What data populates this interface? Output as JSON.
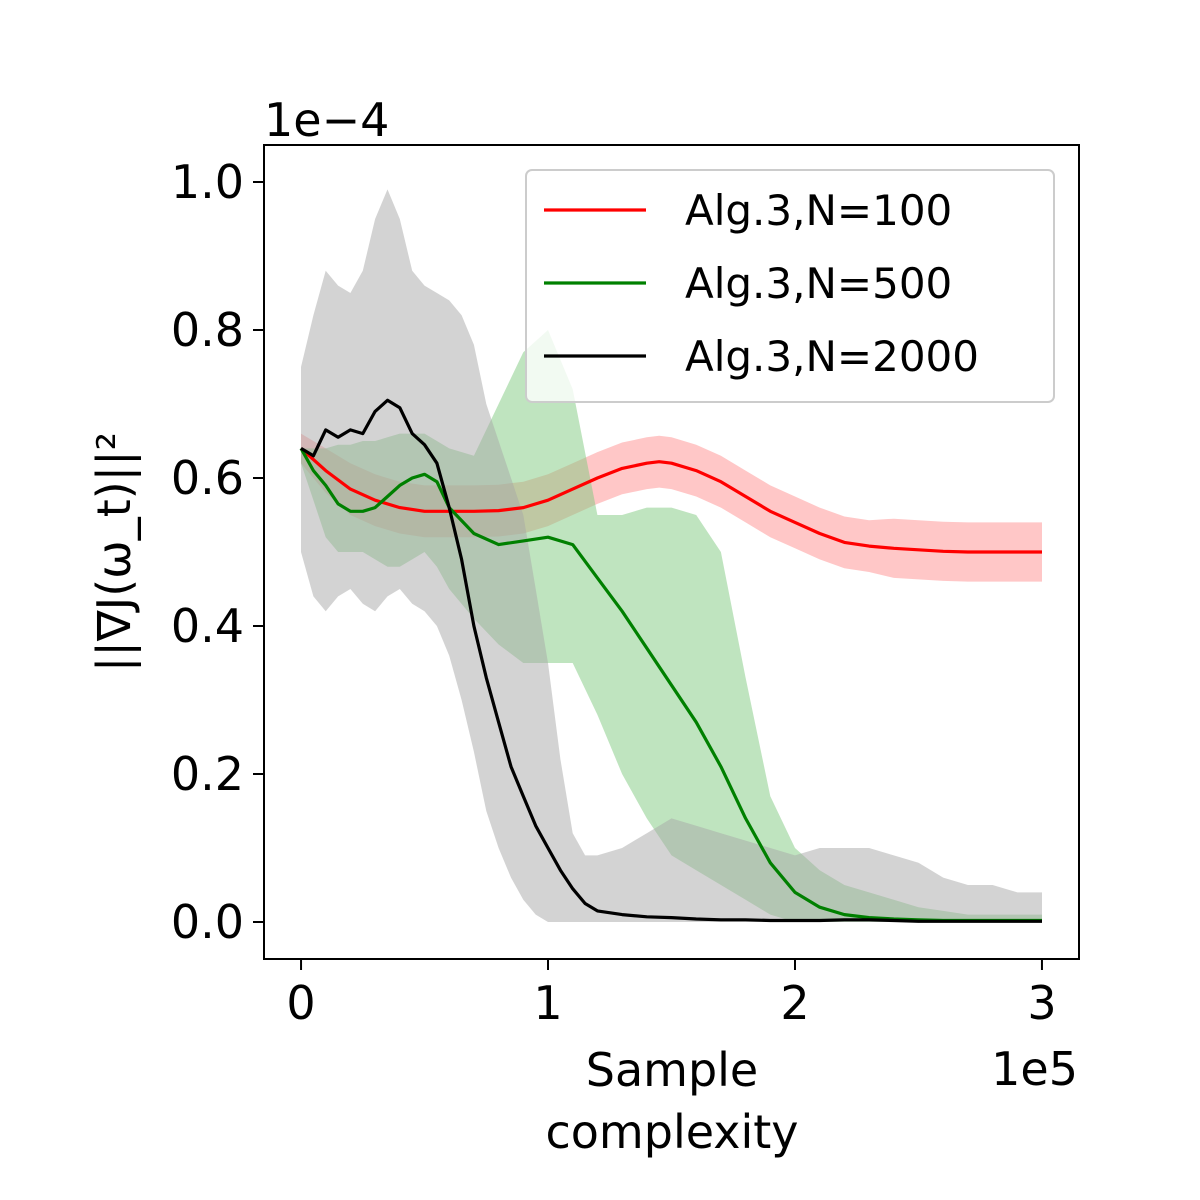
{
  "chart_data": {
    "type": "line",
    "xlabel": "Sample\ncomplexity",
    "xlabel_lines": [
      "Sample",
      "complexity"
    ],
    "ylabel": "||∇J(ω_t)||²",
    "x_scale_label": "1e5",
    "y_scale_label": "1e−4",
    "xlim": [
      -0.15,
      3.15
    ],
    "ylim": [
      -0.05,
      1.05
    ],
    "x_ticks": [
      0,
      1,
      2,
      3
    ],
    "x_tick_labels": [
      "0",
      "1",
      "2",
      "3"
    ],
    "y_ticks": [
      0.0,
      0.2,
      0.4,
      0.6,
      0.8,
      1.0
    ],
    "y_tick_labels": [
      "0.0",
      "0.2",
      "0.4",
      "0.6",
      "0.8",
      "1.0"
    ],
    "grid": false,
    "legend_position": "top-right",
    "series": [
      {
        "name": "Alg.3,N=100",
        "color": "#ff0000",
        "band_color": "#ff9090",
        "x": [
          0,
          0.1,
          0.2,
          0.3,
          0.4,
          0.5,
          0.6,
          0.7,
          0.8,
          0.9,
          1.0,
          1.1,
          1.2,
          1.3,
          1.4,
          1.45,
          1.5,
          1.6,
          1.7,
          1.8,
          1.9,
          2.0,
          2.1,
          2.2,
          2.3,
          2.4,
          2.5,
          2.6,
          2.7,
          2.8,
          2.9,
          3.0
        ],
        "values": [
          0.64,
          0.61,
          0.585,
          0.57,
          0.56,
          0.555,
          0.555,
          0.555,
          0.556,
          0.56,
          0.57,
          0.585,
          0.6,
          0.613,
          0.62,
          0.622,
          0.62,
          0.61,
          0.595,
          0.575,
          0.555,
          0.54,
          0.525,
          0.513,
          0.508,
          0.505,
          0.503,
          0.501,
          0.5,
          0.5,
          0.5,
          0.5
        ],
        "band": [
          0.02,
          0.03,
          0.035,
          0.035,
          0.035,
          0.035,
          0.035,
          0.035,
          0.035,
          0.035,
          0.035,
          0.035,
          0.035,
          0.035,
          0.035,
          0.035,
          0.035,
          0.035,
          0.035,
          0.035,
          0.035,
          0.035,
          0.035,
          0.035,
          0.035,
          0.04,
          0.04,
          0.04,
          0.04,
          0.04,
          0.04,
          0.04
        ]
      },
      {
        "name": "Alg.3,N=500",
        "color": "#008000",
        "band_color": "#7fc97f",
        "x": [
          0,
          0.05,
          0.1,
          0.15,
          0.2,
          0.25,
          0.3,
          0.35,
          0.4,
          0.45,
          0.5,
          0.55,
          0.6,
          0.7,
          0.8,
          0.9,
          1.0,
          1.1,
          1.2,
          1.3,
          1.4,
          1.5,
          1.6,
          1.7,
          1.8,
          1.9,
          2.0,
          2.1,
          2.2,
          2.3,
          2.4,
          2.5,
          2.6,
          2.7,
          2.8,
          2.9,
          3.0
        ],
        "values": [
          0.64,
          0.61,
          0.59,
          0.565,
          0.555,
          0.555,
          0.56,
          0.575,
          0.59,
          0.6,
          0.605,
          0.595,
          0.56,
          0.525,
          0.51,
          0.515,
          0.52,
          0.51,
          0.465,
          0.42,
          0.37,
          0.32,
          0.27,
          0.21,
          0.14,
          0.08,
          0.04,
          0.02,
          0.01,
          0.006,
          0.004,
          0.003,
          0.002,
          0.002,
          0.002,
          0.002,
          0.002
        ],
        "band_upper": [
          0.64,
          0.64,
          0.64,
          0.645,
          0.645,
          0.65,
          0.65,
          0.655,
          0.66,
          0.66,
          0.66,
          0.65,
          0.64,
          0.63,
          0.7,
          0.77,
          0.8,
          0.72,
          0.55,
          0.55,
          0.56,
          0.56,
          0.55,
          0.5,
          0.33,
          0.17,
          0.1,
          0.07,
          0.05,
          0.04,
          0.03,
          0.02,
          0.015,
          0.01,
          0.01,
          0.01,
          0.01
        ],
        "band_lower": [
          0.62,
          0.57,
          0.52,
          0.5,
          0.5,
          0.5,
          0.49,
          0.48,
          0.48,
          0.49,
          0.5,
          0.48,
          0.45,
          0.41,
          0.375,
          0.35,
          0.35,
          0.35,
          0.28,
          0.2,
          0.14,
          0.09,
          0.07,
          0.05,
          0.03,
          0.01,
          0.0,
          0.0,
          0.0,
          0.0,
          0.0,
          0.0,
          0.0,
          0.0,
          0.0,
          0.0,
          0.0
        ]
      },
      {
        "name": "Alg.3,N=2000",
        "color": "#000000",
        "band_color": "#a8a8a8",
        "x": [
          0,
          0.05,
          0.1,
          0.15,
          0.2,
          0.25,
          0.3,
          0.35,
          0.4,
          0.45,
          0.5,
          0.55,
          0.6,
          0.65,
          0.7,
          0.75,
          0.8,
          0.85,
          0.9,
          0.95,
          1.0,
          1.05,
          1.1,
          1.15,
          1.2,
          1.3,
          1.4,
          1.5,
          1.6,
          1.7,
          1.8,
          1.9,
          2.0,
          2.1,
          2.2,
          2.3,
          2.4,
          2.5,
          2.6,
          2.7,
          2.8,
          2.9,
          3.0
        ],
        "values": [
          0.64,
          0.63,
          0.665,
          0.655,
          0.665,
          0.66,
          0.69,
          0.705,
          0.695,
          0.66,
          0.645,
          0.62,
          0.56,
          0.49,
          0.4,
          0.33,
          0.27,
          0.21,
          0.17,
          0.13,
          0.1,
          0.07,
          0.045,
          0.025,
          0.015,
          0.01,
          0.007,
          0.006,
          0.004,
          0.003,
          0.003,
          0.002,
          0.002,
          0.002,
          0.003,
          0.003,
          0.002,
          0.001,
          0.001,
          0.001,
          0.001,
          0.001,
          0.001
        ],
        "band_upper": [
          0.75,
          0.82,
          0.88,
          0.86,
          0.85,
          0.88,
          0.95,
          0.99,
          0.95,
          0.88,
          0.86,
          0.85,
          0.84,
          0.82,
          0.78,
          0.7,
          0.65,
          0.6,
          0.55,
          0.45,
          0.35,
          0.22,
          0.12,
          0.09,
          0.09,
          0.1,
          0.12,
          0.14,
          0.13,
          0.12,
          0.11,
          0.1,
          0.09,
          0.1,
          0.1,
          0.1,
          0.09,
          0.08,
          0.06,
          0.05,
          0.05,
          0.04,
          0.04
        ],
        "band_lower": [
          0.5,
          0.44,
          0.42,
          0.44,
          0.45,
          0.43,
          0.42,
          0.44,
          0.45,
          0.43,
          0.42,
          0.4,
          0.36,
          0.3,
          0.23,
          0.15,
          0.1,
          0.06,
          0.03,
          0.01,
          0.0,
          0.0,
          0.0,
          0.0,
          0.0,
          0.0,
          0.0,
          0.0,
          0.0,
          0.0,
          0.0,
          0.0,
          0.0,
          0.0,
          0.0,
          0.0,
          0.0,
          0.0,
          0.0,
          0.0,
          0.0,
          0.0,
          0.0
        ]
      }
    ]
  }
}
